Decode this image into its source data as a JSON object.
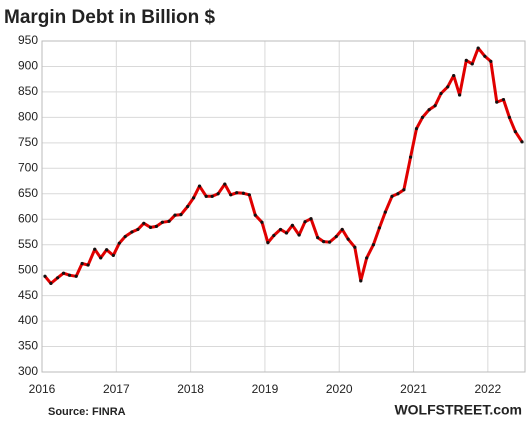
{
  "chart_data": {
    "type": "line",
    "title": "Margin Debt in Billion $",
    "source": "Source: FINRA",
    "brand": "WOLFSTREET.com",
    "xlim": [
      2016,
      2022.5
    ],
    "xticks": [
      2016,
      2017,
      2018,
      2019,
      2020,
      2021,
      2022
    ],
    "ylim": [
      300,
      950
    ],
    "yticks": [
      300,
      350,
      400,
      450,
      500,
      550,
      600,
      650,
      700,
      750,
      800,
      850,
      900,
      950
    ],
    "grid": true,
    "line_color": "#e00000",
    "marker_color": "#111111",
    "x": [
      2016.04,
      2016.12,
      2016.21,
      2016.29,
      2016.37,
      2016.46,
      2016.54,
      2016.62,
      2016.71,
      2016.79,
      2016.87,
      2016.96,
      2017.04,
      2017.12,
      2017.21,
      2017.29,
      2017.37,
      2017.46,
      2017.54,
      2017.62,
      2017.71,
      2017.79,
      2017.87,
      2017.96,
      2018.04,
      2018.12,
      2018.21,
      2018.29,
      2018.37,
      2018.46,
      2018.54,
      2018.62,
      2018.71,
      2018.79,
      2018.87,
      2018.96,
      2019.04,
      2019.12,
      2019.21,
      2019.29,
      2019.37,
      2019.46,
      2019.54,
      2019.62,
      2019.71,
      2019.79,
      2019.87,
      2019.96,
      2020.04,
      2020.12,
      2020.21,
      2020.29,
      2020.37,
      2020.46,
      2020.54,
      2020.62,
      2020.71,
      2020.79,
      2020.87,
      2020.96,
      2021.04,
      2021.12,
      2021.21,
      2021.29,
      2021.37,
      2021.46,
      2021.54,
      2021.62,
      2021.71,
      2021.79,
      2021.87,
      2021.96,
      2022.04,
      2022.12,
      2022.21,
      2022.29,
      2022.37,
      2022.46
    ],
    "values": [
      488,
      474,
      485,
      494,
      490,
      488,
      513,
      510,
      541,
      524,
      540,
      529,
      553,
      566,
      575,
      580,
      592,
      584,
      586,
      594,
      596,
      608,
      609,
      625,
      642,
      665,
      645,
      645,
      650,
      669,
      648,
      652,
      651,
      648,
      608,
      594,
      554,
      568,
      580,
      573,
      588,
      569,
      595,
      601,
      564,
      556,
      555,
      566,
      580,
      561,
      545,
      479,
      524,
      550,
      583,
      614,
      645,
      650,
      658,
      722,
      778,
      800,
      815,
      823,
      847,
      860,
      882,
      844,
      912,
      905,
      936,
      920,
      910,
      830,
      835,
      800,
      772,
      752
    ]
  }
}
